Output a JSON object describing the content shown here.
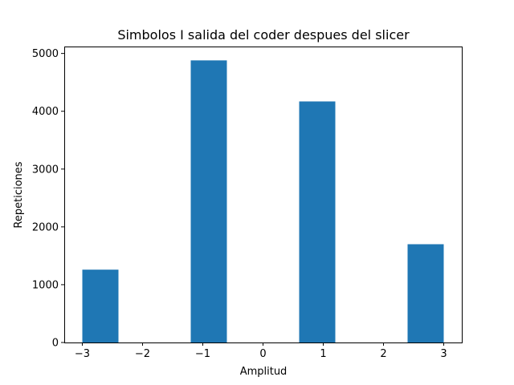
{
  "chart_data": {
    "type": "bar",
    "title": "Simbolos I salida del coder despues del slicer",
    "xlabel": "Amplitud",
    "ylabel": "Repeticiones",
    "xlim": [
      -3.3,
      3.3
    ],
    "ylim": [
      0,
      5120
    ],
    "xticks": [
      -3,
      -2,
      -1,
      0,
      1,
      2,
      3
    ],
    "xtick_labels": [
      "−3",
      "−2",
      "−1",
      "0",
      "1",
      "2",
      "3"
    ],
    "yticks": [
      0,
      1000,
      2000,
      3000,
      4000,
      5000
    ],
    "ytick_labels": [
      "0",
      "1000",
      "2000",
      "3000",
      "4000",
      "5000"
    ],
    "bar_width": 0.6,
    "bars": [
      {
        "x": -2.7,
        "value": 1260
      },
      {
        "x": -0.9,
        "value": 4880
      },
      {
        "x": 0.9,
        "value": 4170
      },
      {
        "x": 2.7,
        "value": 1700
      }
    ],
    "grid": false,
    "bar_color": "#1f77b4"
  }
}
